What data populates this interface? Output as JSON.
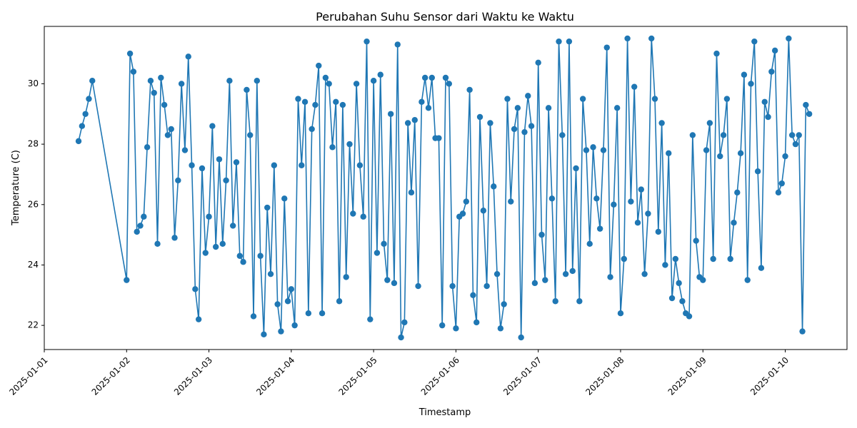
{
  "chart_data": {
    "type": "line",
    "title": "Perubahan Suhu Sensor dari Waktu ke Waktu",
    "xlabel": "Timestamp",
    "ylabel": "Temperature (C)",
    "x_tick_labels": [
      "2025-01-01",
      "2025-01-02",
      "2025-01-03",
      "2025-01-04",
      "2025-01-05",
      "2025-01-06",
      "2025-01-07",
      "2025-01-08",
      "2025-01-09",
      "2025-01-10"
    ],
    "y_tick_labels": [
      "22",
      "24",
      "26",
      "28",
      "30"
    ],
    "xlim": [
      "2025-01-01T00:00",
      "2025-01-10T18:00"
    ],
    "ylim": [
      21.2,
      31.9
    ],
    "grid": false,
    "legend": "none",
    "line_color": "#1f77b4",
    "marker": "circle",
    "series": [
      {
        "points": [
          [
            "2025-01-01T10:00",
            28.1
          ],
          [
            "2025-01-01T11:00",
            28.6
          ],
          [
            "2025-01-01T12:00",
            29.0
          ],
          [
            "2025-01-01T13:00",
            29.5
          ],
          [
            "2025-01-01T14:00",
            30.1
          ],
          [
            "2025-01-02T00:00",
            23.5
          ],
          [
            "2025-01-02T01:00",
            31.0
          ],
          [
            "2025-01-02T02:00",
            30.4
          ],
          [
            "2025-01-02T03:00",
            25.1
          ],
          [
            "2025-01-02T04:00",
            25.3
          ],
          [
            "2025-01-02T05:00",
            25.6
          ],
          [
            "2025-01-02T06:00",
            27.9
          ],
          [
            "2025-01-02T07:00",
            30.1
          ],
          [
            "2025-01-02T08:00",
            29.7
          ],
          [
            "2025-01-02T09:00",
            24.7
          ],
          [
            "2025-01-02T10:00",
            30.2
          ],
          [
            "2025-01-02T11:00",
            29.3
          ],
          [
            "2025-01-02T12:00",
            28.3
          ],
          [
            "2025-01-02T13:00",
            28.5
          ],
          [
            "2025-01-02T14:00",
            24.9
          ],
          [
            "2025-01-02T15:00",
            26.8
          ],
          [
            "2025-01-02T16:00",
            30.0
          ],
          [
            "2025-01-02T17:00",
            27.8
          ],
          [
            "2025-01-02T18:00",
            30.9
          ],
          [
            "2025-01-02T19:00",
            27.3
          ],
          [
            "2025-01-02T20:00",
            23.2
          ],
          [
            "2025-01-02T21:00",
            22.2
          ],
          [
            "2025-01-02T22:00",
            27.2
          ],
          [
            "2025-01-02T23:00",
            24.4
          ],
          [
            "2025-01-03T00:00",
            25.6
          ],
          [
            "2025-01-03T01:00",
            28.6
          ],
          [
            "2025-01-03T02:00",
            24.6
          ],
          [
            "2025-01-03T03:00",
            27.5
          ],
          [
            "2025-01-03T04:00",
            24.7
          ],
          [
            "2025-01-03T05:00",
            26.8
          ],
          [
            "2025-01-03T06:00",
            30.1
          ],
          [
            "2025-01-03T07:00",
            25.3
          ],
          [
            "2025-01-03T08:00",
            27.4
          ],
          [
            "2025-01-03T09:00",
            24.3
          ],
          [
            "2025-01-03T10:00",
            24.1
          ],
          [
            "2025-01-03T11:00",
            29.8
          ],
          [
            "2025-01-03T12:00",
            28.3
          ],
          [
            "2025-01-03T13:00",
            22.3
          ],
          [
            "2025-01-03T14:00",
            30.1
          ],
          [
            "2025-01-03T15:00",
            24.3
          ],
          [
            "2025-01-03T16:00",
            21.7
          ],
          [
            "2025-01-03T17:00",
            25.9
          ],
          [
            "2025-01-03T18:00",
            23.7
          ],
          [
            "2025-01-03T19:00",
            27.3
          ],
          [
            "2025-01-03T20:00",
            22.7
          ],
          [
            "2025-01-03T21:00",
            21.8
          ],
          [
            "2025-01-03T22:00",
            26.2
          ],
          [
            "2025-01-03T23:00",
            22.8
          ],
          [
            "2025-01-04T00:00",
            23.2
          ],
          [
            "2025-01-04T01:00",
            22.0
          ],
          [
            "2025-01-04T02:00",
            29.5
          ],
          [
            "2025-01-04T03:00",
            27.3
          ],
          [
            "2025-01-04T04:00",
            29.4
          ],
          [
            "2025-01-04T05:00",
            22.4
          ],
          [
            "2025-01-04T06:00",
            28.5
          ],
          [
            "2025-01-04T07:00",
            29.3
          ],
          [
            "2025-01-04T08:00",
            30.6
          ],
          [
            "2025-01-04T09:00",
            22.4
          ],
          [
            "2025-01-04T10:00",
            30.2
          ],
          [
            "2025-01-04T11:00",
            30.0
          ],
          [
            "2025-01-04T12:00",
            27.9
          ],
          [
            "2025-01-04T13:00",
            29.4
          ],
          [
            "2025-01-04T14:00",
            22.8
          ],
          [
            "2025-01-04T15:00",
            29.3
          ],
          [
            "2025-01-04T16:00",
            23.6
          ],
          [
            "2025-01-04T17:00",
            28.0
          ],
          [
            "2025-01-04T18:00",
            25.7
          ],
          [
            "2025-01-04T19:00",
            30.0
          ],
          [
            "2025-01-04T20:00",
            27.3
          ],
          [
            "2025-01-04T21:00",
            25.6
          ],
          [
            "2025-01-04T22:00",
            31.4
          ],
          [
            "2025-01-04T23:00",
            22.2
          ],
          [
            "2025-01-05T00:00",
            30.1
          ],
          [
            "2025-01-05T01:00",
            24.4
          ],
          [
            "2025-01-05T02:00",
            30.3
          ],
          [
            "2025-01-05T03:00",
            24.7
          ],
          [
            "2025-01-05T04:00",
            23.5
          ],
          [
            "2025-01-05T05:00",
            29.0
          ],
          [
            "2025-01-05T06:00",
            23.4
          ],
          [
            "2025-01-05T07:00",
            31.3
          ],
          [
            "2025-01-05T08:00",
            21.6
          ],
          [
            "2025-01-05T09:00",
            22.1
          ],
          [
            "2025-01-05T10:00",
            28.7
          ],
          [
            "2025-01-05T11:00",
            26.4
          ],
          [
            "2025-01-05T12:00",
            28.8
          ],
          [
            "2025-01-05T13:00",
            23.3
          ],
          [
            "2025-01-05T14:00",
            29.4
          ],
          [
            "2025-01-05T15:00",
            30.2
          ],
          [
            "2025-01-05T16:00",
            29.2
          ],
          [
            "2025-01-05T17:00",
            30.2
          ],
          [
            "2025-01-05T18:00",
            28.2
          ],
          [
            "2025-01-05T19:00",
            28.2
          ],
          [
            "2025-01-05T20:00",
            22.0
          ],
          [
            "2025-01-05T21:00",
            30.2
          ],
          [
            "2025-01-05T22:00",
            30.0
          ],
          [
            "2025-01-05T23:00",
            23.3
          ],
          [
            "2025-01-06T00:00",
            21.9
          ],
          [
            "2025-01-06T01:00",
            25.6
          ],
          [
            "2025-01-06T02:00",
            25.7
          ],
          [
            "2025-01-06T03:00",
            26.1
          ],
          [
            "2025-01-06T04:00",
            29.8
          ],
          [
            "2025-01-06T05:00",
            23.0
          ],
          [
            "2025-01-06T06:00",
            22.1
          ],
          [
            "2025-01-06T07:00",
            28.9
          ],
          [
            "2025-01-06T08:00",
            25.8
          ],
          [
            "2025-01-06T09:00",
            23.3
          ],
          [
            "2025-01-06T10:00",
            28.7
          ],
          [
            "2025-01-06T11:00",
            26.6
          ],
          [
            "2025-01-06T12:00",
            23.7
          ],
          [
            "2025-01-06T13:00",
            21.9
          ],
          [
            "2025-01-06T14:00",
            22.7
          ],
          [
            "2025-01-06T15:00",
            29.5
          ],
          [
            "2025-01-06T16:00",
            26.1
          ],
          [
            "2025-01-06T17:00",
            28.5
          ],
          [
            "2025-01-06T18:00",
            29.2
          ],
          [
            "2025-01-06T19:00",
            21.6
          ],
          [
            "2025-01-06T20:00",
            28.4
          ],
          [
            "2025-01-06T21:00",
            29.6
          ],
          [
            "2025-01-06T22:00",
            28.6
          ],
          [
            "2025-01-06T23:00",
            23.4
          ],
          [
            "2025-01-07T00:00",
            30.7
          ],
          [
            "2025-01-07T01:00",
            25.0
          ],
          [
            "2025-01-07T02:00",
            23.5
          ],
          [
            "2025-01-07T03:00",
            29.2
          ],
          [
            "2025-01-07T04:00",
            26.2
          ],
          [
            "2025-01-07T05:00",
            22.8
          ],
          [
            "2025-01-07T06:00",
            31.4
          ],
          [
            "2025-01-07T07:00",
            28.3
          ],
          [
            "2025-01-07T08:00",
            23.7
          ],
          [
            "2025-01-07T09:00",
            31.4
          ],
          [
            "2025-01-07T10:00",
            23.8
          ],
          [
            "2025-01-07T11:00",
            27.2
          ],
          [
            "2025-01-07T12:00",
            22.8
          ],
          [
            "2025-01-07T13:00",
            29.5
          ],
          [
            "2025-01-07T14:00",
            27.8
          ],
          [
            "2025-01-07T15:00",
            24.7
          ],
          [
            "2025-01-07T16:00",
            27.9
          ],
          [
            "2025-01-07T17:00",
            26.2
          ],
          [
            "2025-01-07T18:00",
            25.2
          ],
          [
            "2025-01-07T19:00",
            27.8
          ],
          [
            "2025-01-07T20:00",
            31.2
          ],
          [
            "2025-01-07T21:00",
            23.6
          ],
          [
            "2025-01-07T22:00",
            26.0
          ],
          [
            "2025-01-07T23:00",
            29.2
          ],
          [
            "2025-01-08T00:00",
            22.4
          ],
          [
            "2025-01-08T01:00",
            24.2
          ],
          [
            "2025-01-08T02:00",
            31.5
          ],
          [
            "2025-01-08T03:00",
            26.1
          ],
          [
            "2025-01-08T04:00",
            29.9
          ],
          [
            "2025-01-08T05:00",
            25.4
          ],
          [
            "2025-01-08T06:00",
            26.5
          ],
          [
            "2025-01-08T07:00",
            23.7
          ],
          [
            "2025-01-08T08:00",
            25.7
          ],
          [
            "2025-01-08T09:00",
            31.5
          ],
          [
            "2025-01-08T10:00",
            29.5
          ],
          [
            "2025-01-08T11:00",
            25.1
          ],
          [
            "2025-01-08T12:00",
            28.7
          ],
          [
            "2025-01-08T13:00",
            24.0
          ],
          [
            "2025-01-08T14:00",
            27.7
          ],
          [
            "2025-01-08T15:00",
            22.9
          ],
          [
            "2025-01-08T16:00",
            24.2
          ],
          [
            "2025-01-08T17:00",
            23.4
          ],
          [
            "2025-01-08T18:00",
            22.8
          ],
          [
            "2025-01-08T19:00",
            22.4
          ],
          [
            "2025-01-08T20:00",
            22.3
          ],
          [
            "2025-01-08T21:00",
            28.3
          ],
          [
            "2025-01-08T22:00",
            24.8
          ],
          [
            "2025-01-08T23:00",
            23.6
          ],
          [
            "2025-01-09T00:00",
            23.5
          ],
          [
            "2025-01-09T01:00",
            27.8
          ],
          [
            "2025-01-09T02:00",
            28.7
          ],
          [
            "2025-01-09T03:00",
            24.2
          ],
          [
            "2025-01-09T04:00",
            31.0
          ],
          [
            "2025-01-09T05:00",
            27.6
          ],
          [
            "2025-01-09T06:00",
            28.3
          ],
          [
            "2025-01-09T07:00",
            29.5
          ],
          [
            "2025-01-09T08:00",
            24.2
          ],
          [
            "2025-01-09T09:00",
            25.4
          ],
          [
            "2025-01-09T10:00",
            26.4
          ],
          [
            "2025-01-09T11:00",
            27.7
          ],
          [
            "2025-01-09T12:00",
            30.3
          ],
          [
            "2025-01-09T13:00",
            23.5
          ],
          [
            "2025-01-09T14:00",
            30.0
          ],
          [
            "2025-01-09T15:00",
            31.4
          ],
          [
            "2025-01-09T16:00",
            27.1
          ],
          [
            "2025-01-09T17:00",
            23.9
          ],
          [
            "2025-01-09T18:00",
            29.4
          ],
          [
            "2025-01-09T19:00",
            28.9
          ],
          [
            "2025-01-09T20:00",
            30.4
          ],
          [
            "2025-01-09T21:00",
            31.1
          ],
          [
            "2025-01-09T22:00",
            26.4
          ],
          [
            "2025-01-09T23:00",
            26.7
          ],
          [
            "2025-01-10T00:00",
            27.6
          ],
          [
            "2025-01-10T01:00",
            31.5
          ],
          [
            "2025-01-10T02:00",
            28.3
          ],
          [
            "2025-01-10T03:00",
            28.0
          ],
          [
            "2025-01-10T04:00",
            28.3
          ],
          [
            "2025-01-10T05:00",
            21.8
          ],
          [
            "2025-01-10T06:00",
            29.3
          ],
          [
            "2025-01-10T07:00",
            29.0
          ]
        ]
      }
    ]
  }
}
